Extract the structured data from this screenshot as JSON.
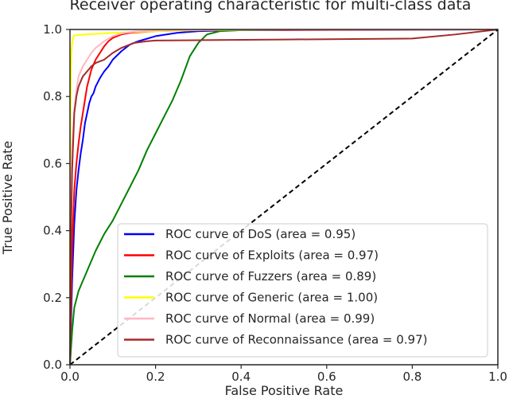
{
  "chart_data": {
    "type": "line",
    "title": "Receiver operating characteristic for multi-class data",
    "xlabel": "False Positive Rate",
    "ylabel": "True Positive Rate",
    "xlim": [
      0.0,
      1.0
    ],
    "ylim": [
      0.0,
      1.0
    ],
    "x_ticks": [
      "0.0",
      "0.2",
      "0.4",
      "0.6",
      "0.8",
      "1.0"
    ],
    "y_ticks": [
      "0.0",
      "0.2",
      "0.4",
      "0.6",
      "0.8",
      "1.0"
    ],
    "grid": false,
    "legend_position": "lower-right",
    "diagonal": {
      "x": [
        0,
        1
      ],
      "y": [
        0,
        1
      ],
      "color": "#000000",
      "style": "dashed"
    },
    "series": [
      {
        "name": "ROC curve of DoS (area = 0.95)",
        "color": "#0000ff",
        "x": [
          0,
          0.002,
          0.005,
          0.01,
          0.015,
          0.02,
          0.025,
          0.03,
          0.035,
          0.04,
          0.045,
          0.05,
          0.055,
          0.06,
          0.07,
          0.08,
          0.09,
          0.1,
          0.12,
          0.14,
          0.16,
          0.2,
          0.25,
          0.3,
          0.4,
          1.0
        ],
        "y": [
          0,
          0.1,
          0.25,
          0.42,
          0.52,
          0.58,
          0.63,
          0.67,
          0.72,
          0.75,
          0.78,
          0.8,
          0.81,
          0.83,
          0.855,
          0.875,
          0.89,
          0.91,
          0.935,
          0.955,
          0.965,
          0.98,
          0.99,
          0.995,
          0.998,
          1.0
        ]
      },
      {
        "name": "ROC curve of Exploits (area = 0.97)",
        "color": "#ff0000",
        "x": [
          0,
          0.002,
          0.005,
          0.01,
          0.015,
          0.02,
          0.025,
          0.03,
          0.035,
          0.04,
          0.05,
          0.06,
          0.07,
          0.08,
          0.09,
          0.1,
          0.12,
          0.14,
          0.2,
          0.3,
          1.0
        ],
        "y": [
          0,
          0.15,
          0.35,
          0.52,
          0.6,
          0.66,
          0.71,
          0.75,
          0.79,
          0.83,
          0.88,
          0.91,
          0.93,
          0.95,
          0.965,
          0.975,
          0.985,
          0.99,
          0.995,
          0.998,
          1.0
        ]
      },
      {
        "name": "ROC curve of Fuzzers (area = 0.89)",
        "color": "#008000",
        "x": [
          0,
          0.005,
          0.01,
          0.02,
          0.03,
          0.04,
          0.05,
          0.06,
          0.08,
          0.1,
          0.12,
          0.14,
          0.16,
          0.18,
          0.2,
          0.22,
          0.24,
          0.26,
          0.28,
          0.3,
          0.32,
          0.35,
          0.4,
          0.5,
          1.0
        ],
        "y": [
          0,
          0.1,
          0.17,
          0.22,
          0.25,
          0.28,
          0.31,
          0.34,
          0.39,
          0.43,
          0.48,
          0.53,
          0.58,
          0.64,
          0.69,
          0.74,
          0.79,
          0.85,
          0.92,
          0.96,
          0.985,
          0.995,
          0.998,
          1.0,
          1.0
        ]
      },
      {
        "name": "ROC curve of Generic (area = 1.00)",
        "color": "#ffff00",
        "x": [
          0,
          0.0005,
          0.001,
          0.002,
          0.003,
          0.005,
          0.008,
          0.01,
          0.02,
          0.05,
          0.1,
          0.2,
          0.3,
          0.5,
          1.0
        ],
        "y": [
          0,
          0.6,
          0.74,
          0.85,
          0.92,
          0.96,
          0.98,
          0.982,
          0.984,
          0.986,
          0.99,
          0.995,
          0.998,
          1.0,
          1.0
        ]
      },
      {
        "name": "ROC curve of Normal (area = 0.99)",
        "color": "#ffb6c1",
        "x": [
          0,
          0.001,
          0.002,
          0.005,
          0.01,
          0.015,
          0.02,
          0.03,
          0.04,
          0.05,
          0.06,
          0.08,
          0.1,
          0.12,
          0.15,
          0.2,
          0.3,
          0.5,
          1.0
        ],
        "y": [
          0,
          0.35,
          0.5,
          0.65,
          0.76,
          0.82,
          0.86,
          0.89,
          0.91,
          0.93,
          0.945,
          0.965,
          0.98,
          0.988,
          0.994,
          0.997,
          0.999,
          1.0,
          1.0
        ]
      },
      {
        "name": "ROC curve of Reconnaissance (area = 0.97)",
        "color": "#a52a2a",
        "x": [
          0,
          0.002,
          0.005,
          0.01,
          0.015,
          0.02,
          0.03,
          0.04,
          0.05,
          0.06,
          0.08,
          0.1,
          0.12,
          0.15,
          0.18,
          0.2,
          0.3,
          0.5,
          0.8,
          0.9,
          1.0
        ],
        "y": [
          0,
          0.35,
          0.58,
          0.75,
          0.8,
          0.83,
          0.86,
          0.875,
          0.89,
          0.9,
          0.91,
          0.93,
          0.945,
          0.96,
          0.965,
          0.967,
          0.968,
          0.97,
          0.973,
          0.985,
          1.0
        ]
      }
    ]
  }
}
